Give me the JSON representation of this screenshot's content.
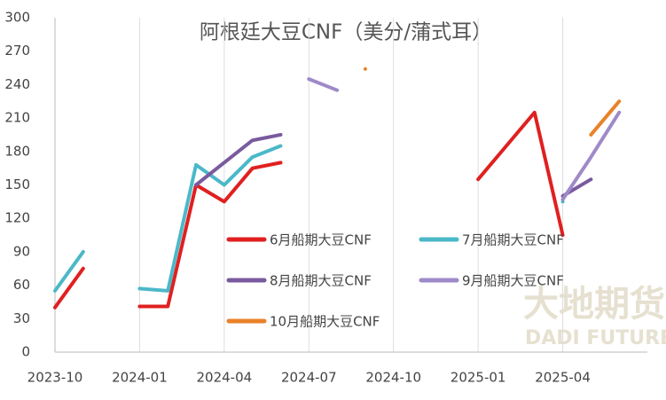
{
  "chart_data": {
    "type": "line",
    "title": "阿根廷大豆CNF（美分/蒲式耳）",
    "x": [
      "2023-10",
      "2023-11",
      "2023-12",
      "2024-01",
      "2024-02",
      "2024-03",
      "2024-04",
      "2024-05",
      "2024-06",
      "2024-07",
      "2024-08",
      "2024-09",
      "2024-10",
      "2024-11",
      "2024-12",
      "2025-01",
      "2025-02",
      "2025-03",
      "2025-04",
      "2025-05",
      "2025-06"
    ],
    "xlim": [
      "2023-10",
      "2025-07"
    ],
    "xticks": [
      "2023-10",
      "2024-01",
      "2024-04",
      "2024-07",
      "2024-10",
      "2025-01",
      "2025-04"
    ],
    "ylim": [
      0,
      300
    ],
    "yticks": [
      0,
      30,
      60,
      90,
      120,
      150,
      180,
      210,
      240,
      270,
      300
    ],
    "grid": "x",
    "series": [
      {
        "name": "6月船期大豆CNF",
        "color": "#e02020",
        "values": [
          40,
          75,
          null,
          41,
          41,
          150,
          135,
          165,
          170,
          null,
          null,
          null,
          null,
          null,
          null,
          155,
          185,
          215,
          105,
          null,
          null
        ]
      },
      {
        "name": "7月船期大豆CNF",
        "color": "#4bb8c8",
        "values": [
          55,
          90,
          null,
          57,
          55,
          168,
          150,
          175,
          185,
          null,
          null,
          null,
          null,
          null,
          null,
          null,
          null,
          null,
          135,
          null,
          null
        ]
      },
      {
        "name": "8月船期大豆CNF",
        "color": "#7a5a9e",
        "values": [
          null,
          null,
          null,
          null,
          null,
          150,
          170,
          190,
          195,
          null,
          null,
          null,
          null,
          null,
          null,
          null,
          null,
          null,
          140,
          155,
          null
        ]
      },
      {
        "name": "9月船期大豆CNF",
        "color": "#9e8ac8",
        "values": [
          null,
          null,
          null,
          null,
          null,
          null,
          null,
          null,
          null,
          245,
          235,
          null,
          null,
          null,
          null,
          null,
          null,
          null,
          137,
          175,
          215
        ]
      },
      {
        "name": "10月船期大豆CNF",
        "color": "#e8822a",
        "values": [
          null,
          null,
          null,
          null,
          null,
          null,
          null,
          null,
          null,
          null,
          null,
          254,
          null,
          null,
          null,
          null,
          null,
          null,
          null,
          195,
          225
        ]
      }
    ],
    "watermark": [
      "大地期货",
      "DADI FUTURES"
    ]
  }
}
